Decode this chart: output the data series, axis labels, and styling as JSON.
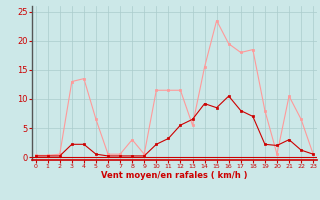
{
  "x": [
    0,
    1,
    2,
    3,
    4,
    5,
    6,
    7,
    8,
    9,
    10,
    11,
    12,
    13,
    14,
    15,
    16,
    17,
    18,
    19,
    20,
    21,
    22,
    23
  ],
  "rafales": [
    0.3,
    0.3,
    0.5,
    13.0,
    13.5,
    6.5,
    0.5,
    0.5,
    3.0,
    0.5,
    11.5,
    11.5,
    11.5,
    5.5,
    15.5,
    23.5,
    19.5,
    18.0,
    18.5,
    8.0,
    0.5,
    10.5,
    6.5,
    0.5
  ],
  "moyen": [
    0.2,
    0.2,
    0.2,
    2.2,
    2.2,
    0.5,
    0.2,
    0.2,
    0.2,
    0.2,
    2.2,
    3.2,
    5.5,
    6.5,
    9.2,
    8.5,
    10.5,
    8.0,
    7.0,
    2.2,
    2.0,
    3.0,
    1.2,
    0.5
  ],
  "bg_color": "#cce8e8",
  "grid_color": "#aacccc",
  "line_color_rafales": "#ff9999",
  "line_color_moyen": "#cc0000",
  "xlabel": "Vent moyen/en rafales ( km/h )",
  "ylabel_ticks": [
    0,
    5,
    10,
    15,
    20,
    25
  ],
  "ylim": [
    -0.5,
    26
  ],
  "xlim": [
    -0.3,
    23.3
  ]
}
